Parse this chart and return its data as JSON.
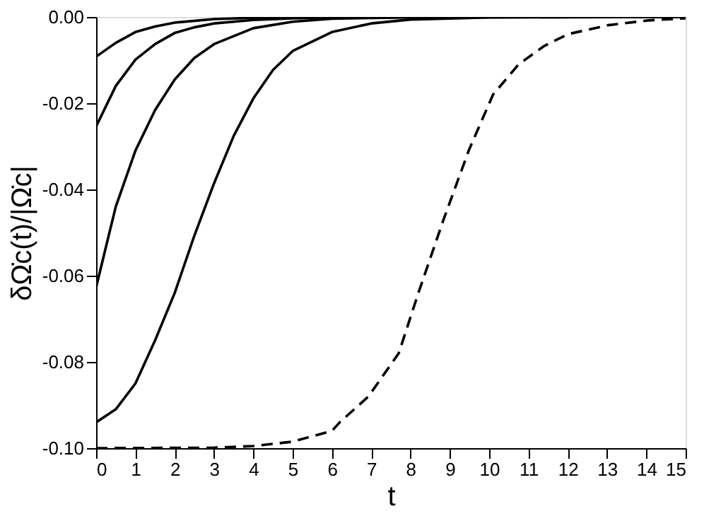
{
  "chart_data": {
    "type": "line",
    "xlabel": "t",
    "ylabel": "δΩ̇c(t)/|Ω̇c|",
    "xlim": [
      0,
      15
    ],
    "ylim": [
      -0.1,
      0.0
    ],
    "xticks": [
      0,
      1,
      2,
      3,
      4,
      5,
      6,
      7,
      8,
      9,
      10,
      11,
      12,
      13,
      14,
      15
    ],
    "yticks": [
      {
        "value": -0.1,
        "label": "-0.10"
      },
      {
        "value": -0.08,
        "label": "-0.08"
      },
      {
        "value": -0.06,
        "label": "-0.06"
      },
      {
        "value": -0.04,
        "label": "-0.04"
      },
      {
        "value": -0.02,
        "label": "-0.02"
      },
      {
        "value": 0.0,
        "label": "0.00"
      }
    ],
    "grid": false,
    "legend": false,
    "marker": "none",
    "series": [
      {
        "color": "#000000",
        "line_style": "solid",
        "x": [
          0,
          0.5,
          1,
          1.5,
          2,
          3,
          4,
          5,
          7,
          15
        ],
        "values": [
          -0.0092,
          -0.006,
          -0.0035,
          -0.0022,
          -0.0013,
          -0.0005,
          -0.0002,
          -0.0001,
          0,
          0
        ]
      },
      {
        "color": "#000000",
        "line_style": "solid",
        "x": [
          0,
          0.5,
          1,
          1.5,
          2,
          2.5,
          3,
          4,
          5,
          6,
          8,
          15
        ],
        "values": [
          -0.0254,
          -0.016,
          -0.0099,
          -0.0063,
          -0.0037,
          -0.0024,
          -0.0015,
          -0.0007,
          -0.0003,
          -0.0001,
          0,
          0
        ]
      },
      {
        "color": "#000000",
        "line_style": "solid",
        "x": [
          0,
          0.32,
          0.5,
          1,
          1.5,
          2,
          2.5,
          3,
          4,
          5,
          6,
          8,
          15
        ],
        "values": [
          -0.0627,
          -0.0507,
          -0.044,
          -0.031,
          -0.0216,
          -0.0145,
          -0.0095,
          -0.0063,
          -0.0026,
          -0.0011,
          -0.0004,
          -0.0001,
          0
        ]
      },
      {
        "color": "#000000",
        "line_style": "solid",
        "x": [
          0,
          0.5,
          1,
          1.5,
          2,
          2.5,
          3,
          3.5,
          4,
          4.5,
          5,
          6,
          7,
          8,
          10,
          15
        ],
        "values": [
          -0.094,
          -0.091,
          -0.085,
          -0.075,
          -0.064,
          -0.0507,
          -0.0386,
          -0.0276,
          -0.0189,
          -0.0123,
          -0.0079,
          -0.0035,
          -0.0015,
          -0.0006,
          -0.0001,
          0
        ]
      },
      {
        "color": "#000000",
        "line_style": "dashed",
        "x": [
          0,
          3,
          4,
          5,
          6,
          6.2,
          6.93,
          7.7,
          8.2,
          8.84,
          9.48,
          10.1,
          10.75,
          11.39,
          12.0,
          13.03,
          14.05,
          15
        ],
        "values": [
          -0.1,
          -0.0999,
          -0.0995,
          -0.0985,
          -0.096,
          -0.094,
          -0.088,
          -0.078,
          -0.064,
          -0.047,
          -0.031,
          -0.018,
          -0.011,
          -0.0068,
          -0.004,
          -0.0019,
          -0.0008,
          -0.0003
        ]
      }
    ]
  }
}
